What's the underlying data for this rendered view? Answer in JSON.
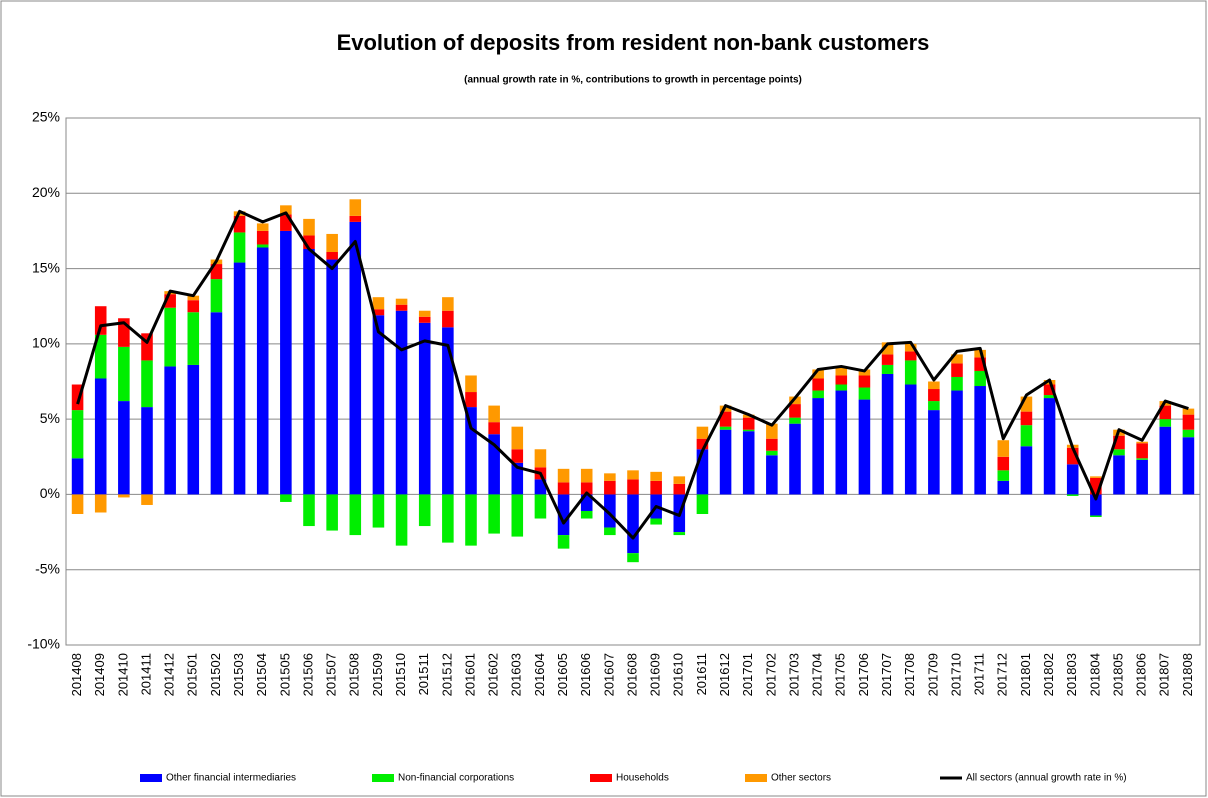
{
  "chart_data": {
    "type": "bar",
    "stacked": true,
    "title": "Evolution of deposits from resident non-bank customers",
    "subtitle": "(annual growth rate in %, contributions to growth in percentage points)",
    "categories": [
      "201408",
      "201409",
      "201410",
      "201411",
      "201412",
      "201501",
      "201502",
      "201503",
      "201504",
      "201505",
      "201506",
      "201507",
      "201508",
      "201509",
      "201510",
      "201511",
      "201512",
      "201601",
      "201602",
      "201603",
      "201604",
      "201605",
      "201606",
      "201607",
      "201608",
      "201609",
      "201610",
      "201611",
      "201612",
      "201701",
      "201702",
      "201703",
      "201704",
      "201705",
      "201706",
      "201707",
      "201708",
      "201709",
      "201710",
      "201711",
      "201712",
      "201801",
      "201802",
      "201803",
      "201804",
      "201805",
      "201806",
      "201807",
      "201808"
    ],
    "ylim": [
      -10,
      25
    ],
    "yticks": [
      {
        "value": -10,
        "label": "-10%"
      },
      {
        "value": -5,
        "label": "-5%"
      },
      {
        "value": 0,
        "label": "0%"
      },
      {
        "value": 5,
        "label": "5%"
      },
      {
        "value": 10,
        "label": "10%"
      },
      {
        "value": 15,
        "label": "15%"
      },
      {
        "value": 20,
        "label": "20%"
      },
      {
        "value": 25,
        "label": "25%"
      }
    ],
    "grid": true,
    "legend": "bottom",
    "series": [
      {
        "name": "Other financial intermediaries",
        "color": "#0000ff",
        "type": "bar",
        "values": [
          2.4,
          7.7,
          6.2,
          5.8,
          8.5,
          8.6,
          12.1,
          15.4,
          16.4,
          17.5,
          16.3,
          15.6,
          18.1,
          11.9,
          12.2,
          11.4,
          11.1,
          5.8,
          4.0,
          2.1,
          1.0,
          -2.7,
          -1.1,
          -2.2,
          -3.9,
          -1.6,
          -2.5,
          3.0,
          4.3,
          4.2,
          2.6,
          4.7,
          6.4,
          6.9,
          6.3,
          8.0,
          7.3,
          5.6,
          6.9,
          7.2,
          0.9,
          3.2,
          6.4,
          2.0,
          -1.4,
          2.6,
          2.3,
          4.5,
          3.8
        ]
      },
      {
        "name": "Non-financial corporations",
        "color": "#00ee00",
        "type": "bar",
        "values": [
          3.2,
          2.9,
          3.6,
          3.1,
          3.9,
          3.5,
          2.2,
          2.0,
          0.2,
          -0.5,
          -2.1,
          -2.4,
          -2.7,
          -2.2,
          -3.4,
          -2.1,
          -3.2,
          -3.4,
          -2.6,
          -2.8,
          -1.6,
          -0.9,
          -0.5,
          -0.5,
          -0.6,
          -0.4,
          -0.2,
          -1.3,
          0.2,
          0.1,
          0.3,
          0.4,
          0.5,
          0.4,
          0.8,
          0.6,
          1.6,
          0.6,
          0.9,
          1.0,
          0.7,
          1.4,
          0.2,
          -0.1,
          -0.1,
          0.4,
          0.1,
          0.5,
          0.5
        ]
      },
      {
        "name": "Households",
        "color": "#ff0000",
        "type": "bar",
        "values": [
          1.7,
          1.9,
          1.9,
          1.8,
          0.9,
          0.8,
          1.0,
          1.1,
          0.9,
          1.1,
          0.9,
          0.5,
          0.4,
          0.4,
          0.4,
          0.4,
          1.1,
          1.0,
          0.8,
          0.9,
          0.8,
          0.8,
          0.8,
          0.9,
          1.0,
          0.9,
          0.7,
          0.7,
          1.0,
          0.8,
          0.8,
          0.9,
          0.8,
          0.6,
          0.8,
          0.7,
          0.6,
          0.8,
          0.9,
          0.9,
          0.9,
          0.9,
          0.7,
          1.1,
          1.1,
          0.9,
          1.0,
          0.9,
          1.0
        ]
      },
      {
        "name": "Other sectors",
        "color": "#ff9900",
        "type": "bar",
        "values": [
          -1.3,
          -1.2,
          -0.2,
          -0.7,
          0.2,
          0.3,
          0.3,
          0.3,
          0.5,
          0.6,
          1.1,
          1.2,
          1.1,
          0.8,
          0.4,
          0.4,
          0.9,
          1.1,
          1.1,
          1.5,
          1.2,
          0.9,
          0.9,
          0.5,
          0.6,
          0.6,
          0.5,
          0.8,
          0.4,
          0.2,
          1.0,
          0.5,
          0.6,
          0.5,
          0.4,
          0.8,
          0.5,
          0.5,
          0.6,
          0.5,
          1.1,
          1.0,
          0.3,
          0.2,
          0.1,
          0.4,
          0.1,
          0.3,
          0.4
        ]
      },
      {
        "name": "All sectors (annual growth rate in %)",
        "color": "#000000",
        "type": "line",
        "values": [
          6.0,
          11.2,
          11.4,
          10.1,
          13.5,
          13.2,
          15.5,
          18.8,
          18.1,
          18.7,
          16.3,
          15.0,
          16.8,
          10.8,
          9.6,
          10.2,
          9.9,
          4.4,
          3.3,
          1.8,
          1.4,
          -1.9,
          0.1,
          -1.3,
          -2.9,
          -0.8,
          -1.4,
          2.9,
          5.9,
          5.3,
          4.6,
          6.4,
          8.3,
          8.5,
          8.2,
          10.0,
          10.1,
          7.6,
          9.5,
          9.7,
          3.7,
          6.6,
          7.6,
          3.1,
          -0.3,
          4.3,
          3.6,
          6.2,
          5.7
        ]
      }
    ]
  }
}
